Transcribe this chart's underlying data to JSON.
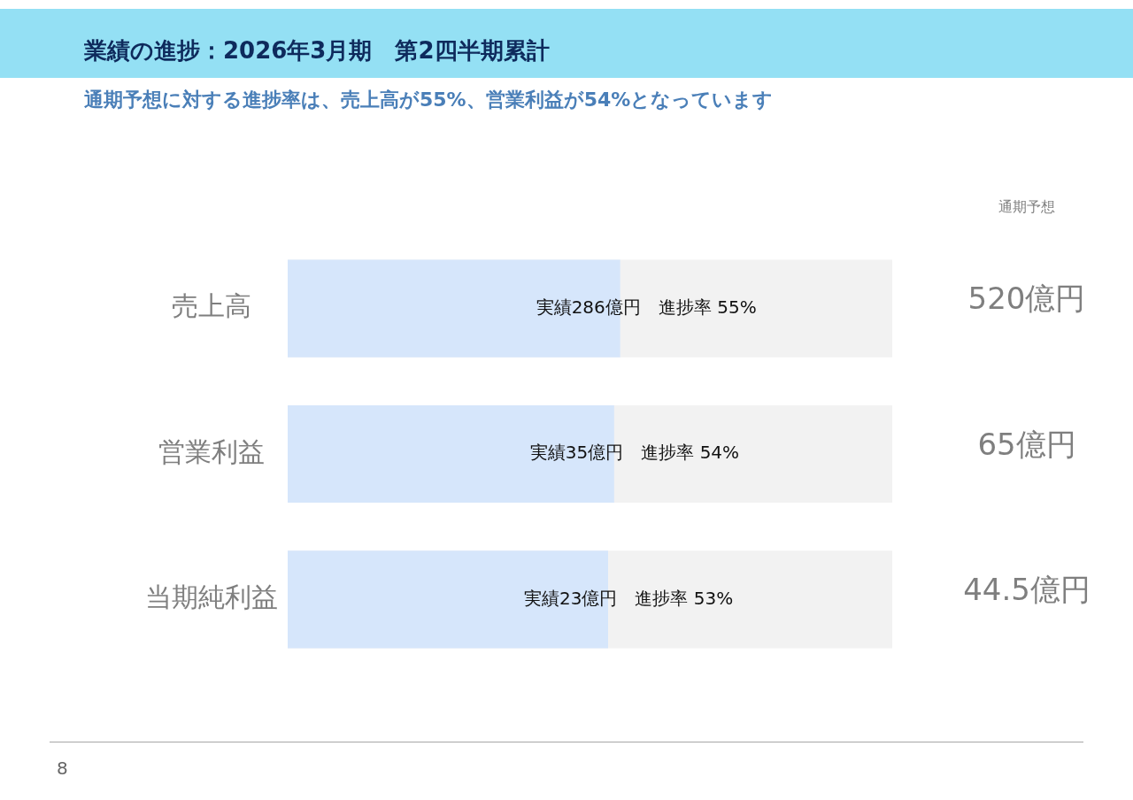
{
  "chart_data": {
    "type": "bar",
    "orientation": "horizontal",
    "tick_labels": "y",
    "title": "業績の進捗：2026年3月期　第2四半期累計",
    "subtitle": "通期予想に対する進捗率は、売上高が55%、営業利益が54%となっています",
    "categories": [
      "売上高",
      "営業利益",
      "当期純利益"
    ],
    "xlim": [
      0,
      100
    ],
    "series": [
      {
        "color": "#d6e6fb",
        "values": [
          55,
          54,
          53
        ],
        "value_labels": [
          "実績286億円　進捗率 55%",
          "実績35億円　進捗率 54%",
          "実績23億円　進捗率 53%"
        ]
      }
    ],
    "annotations": [
      "通期予想",
      "8",
      "520億円",
      "65億円",
      "44.5億円"
    ]
  }
}
